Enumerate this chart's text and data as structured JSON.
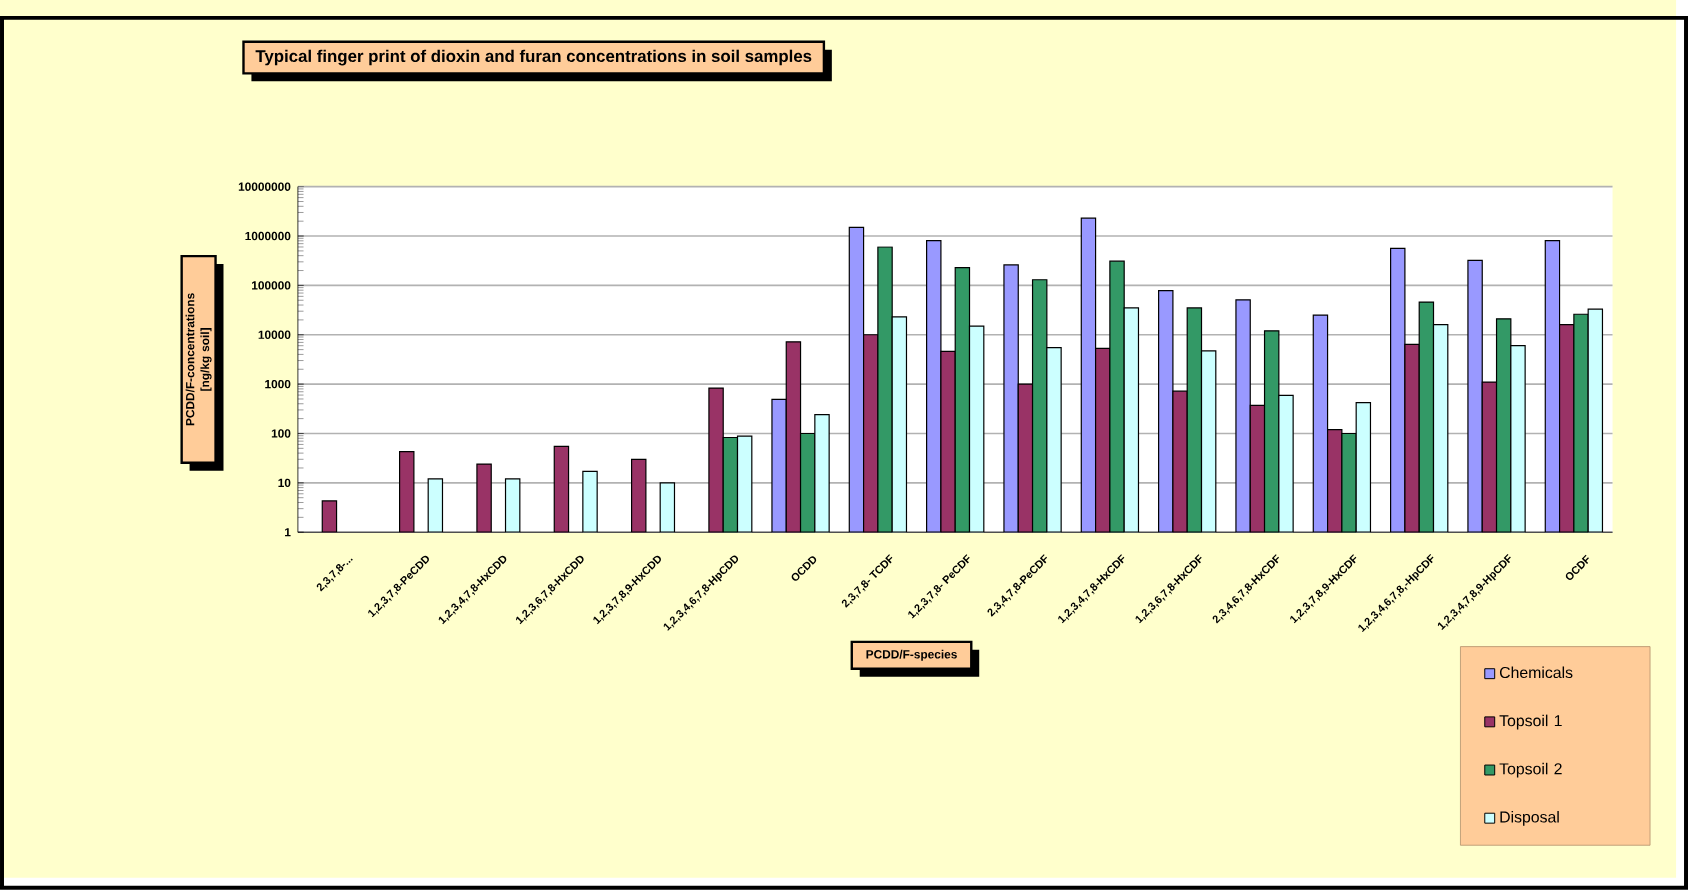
{
  "chart_data": {
    "type": "bar",
    "title": "Typical finger print of dioxin and furan concentrations in soil samples",
    "xlabel": "PCDD/F-species",
    "ylabel": "PCDD/F-concentrations [ng/kg soil]",
    "categories": [
      "2,3,7,8-...",
      "1,2,3,7,8-PeCDD",
      "1,2,3,4,7,8-HxCDD",
      "1,2,3,6,7,8-HxCDD",
      "1,2,3,7,8,9-HxCDD",
      "1,2,3,4,6,7,8-HpCDD",
      "OCDD",
      "2,3,7,8- TCDF",
      "1,2,3,7,8- PeCDF",
      "2,3,4,7,8-PeCDF",
      "1,2,3,4,7,8-HxCDF",
      "1,2,3,6,7,8-HxCDF",
      "2,3,4,6,7,8-HxCDF",
      "1,2,3,7,8,9-HxCDF",
      "1,2,3,4,6,7,8,-HpCDF",
      "1,2,3,4,7,8,9-HpCDF",
      "OCDF"
    ],
    "series": [
      {
        "name": "Chemicals",
        "color": "#9999ff",
        "values": [
          null,
          null,
          null,
          null,
          null,
          null,
          490,
          1500000,
          810000,
          260000,
          2300000,
          78000,
          51000,
          25000,
          560000,
          320000,
          810000
        ]
      },
      {
        "name": "Topsoil 1",
        "color": "#993366",
        "values": [
          4.3,
          43,
          24,
          55,
          30,
          830,
          7200,
          10000,
          4600,
          1000,
          5300,
          720,
          370,
          120,
          6400,
          1100,
          16000
        ]
      },
      {
        "name": "Topsoil 2",
        "color": "#339966",
        "values": [
          null,
          null,
          null,
          null,
          null,
          83,
          100,
          600000,
          230000,
          130000,
          310000,
          35000,
          12000,
          100,
          46000,
          21000,
          26000
        ]
      },
      {
        "name": "Disposal",
        "color": "#ccffff",
        "values": [
          null,
          12,
          12,
          17,
          10,
          88,
          240,
          23000,
          15000,
          5500,
          35000,
          4700,
          590,
          420,
          16000,
          6000,
          33000
        ]
      }
    ],
    "log": "y",
    "ylim": [
      1,
      10000000
    ],
    "yticks": [
      1,
      10,
      100,
      1000,
      10000,
      100000,
      1000000,
      10000000
    ],
    "grid": "y",
    "legend": "bottom right"
  }
}
